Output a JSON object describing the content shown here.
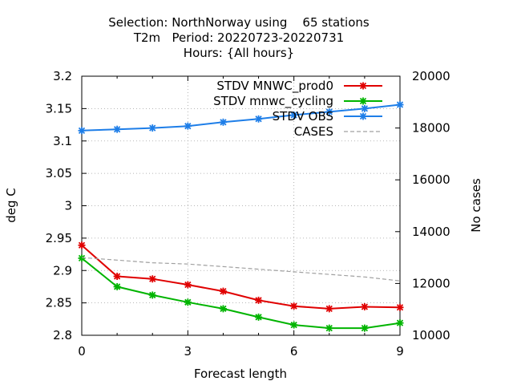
{
  "chart_data": {
    "type": "line",
    "title_lines": [
      "Selection: NorthNorway using    65 stations",
      "T2m   Period: 20220723-20220731",
      "Hours: {All hours}"
    ],
    "xlabel": "Forecast length",
    "ylabel": "deg C",
    "y2label": "No cases",
    "xlim": [
      0,
      9
    ],
    "ylim": [
      2.8,
      3.2
    ],
    "y2lim": [
      10000,
      20000
    ],
    "x_ticks": [
      "0",
      "3",
      "6",
      "9"
    ],
    "y_ticks": [
      "2.8",
      "2.85",
      "2.9",
      "2.95",
      "3",
      "3.05",
      "3.1",
      "3.15",
      "3.2"
    ],
    "y2_ticks": [
      "10000",
      "12000",
      "14000",
      "16000",
      "18000",
      "20000"
    ],
    "grid": true,
    "legend_position": "top-right",
    "x": [
      0,
      1,
      2,
      3,
      4,
      5,
      6,
      7,
      8,
      9
    ],
    "series": [
      {
        "name": "STDV MNWC_prod0",
        "color": "#e00000",
        "marker": "x-star",
        "axis": "y1",
        "values": [
          2.939,
          2.891,
          2.887,
          2.878,
          2.868,
          2.854,
          2.845,
          2.841,
          2.844,
          2.843
        ]
      },
      {
        "name": "STDV mnwc_cycling",
        "color": "#00b400",
        "marker": "x-star",
        "axis": "y1",
        "values": [
          2.919,
          2.875,
          2.862,
          2.851,
          2.841,
          2.828,
          2.816,
          2.811,
          2.811,
          2.819
        ]
      },
      {
        "name": "STDV OBS",
        "color": "#1e7ee8",
        "marker": "x-star",
        "axis": "y1",
        "values": [
          3.116,
          3.118,
          3.12,
          3.123,
          3.129,
          3.134,
          3.14,
          3.145,
          3.15,
          3.156
        ]
      },
      {
        "name": "CASES",
        "color": "#a0a0a0",
        "marker": "none",
        "dashed": true,
        "axis": "y2",
        "values": [
          13000,
          12900,
          12800,
          12750,
          12650,
          12550,
          12450,
          12350,
          12250,
          12100
        ]
      }
    ]
  }
}
